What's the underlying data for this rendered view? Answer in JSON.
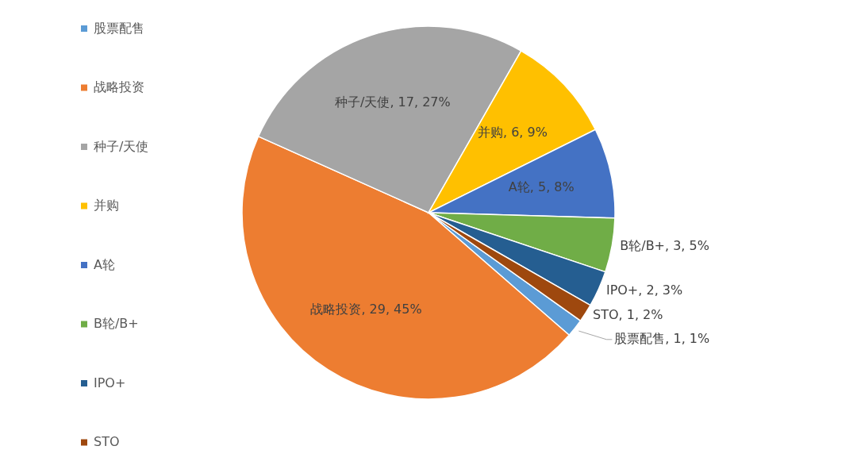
{
  "chart_data": {
    "type": "pie",
    "categories": [
      "股票配售",
      "战略投资",
      "种子/天使",
      "并购",
      "A轮",
      "B轮/B+",
      "IPO+",
      "STO"
    ],
    "values": [
      1,
      29,
      17,
      6,
      5,
      3,
      2,
      1
    ],
    "colors": [
      "#5b9bd5",
      "#ed7d31",
      "#a5a5a5",
      "#ffc000",
      "#4472c4",
      "#70ad47",
      "#255e91",
      "#9e480e"
    ],
    "value_labels": [
      "股票配售, 1, 1%",
      "战略投资, 29, 45%",
      "种子/天使, 17, 27%",
      "并购, 6, 9%",
      "A轮, 5, 8%",
      "B轮/B+, 3, 5%",
      "IPO+, 2, 3%",
      "STO, 1, 2%"
    ],
    "legend": "left"
  }
}
